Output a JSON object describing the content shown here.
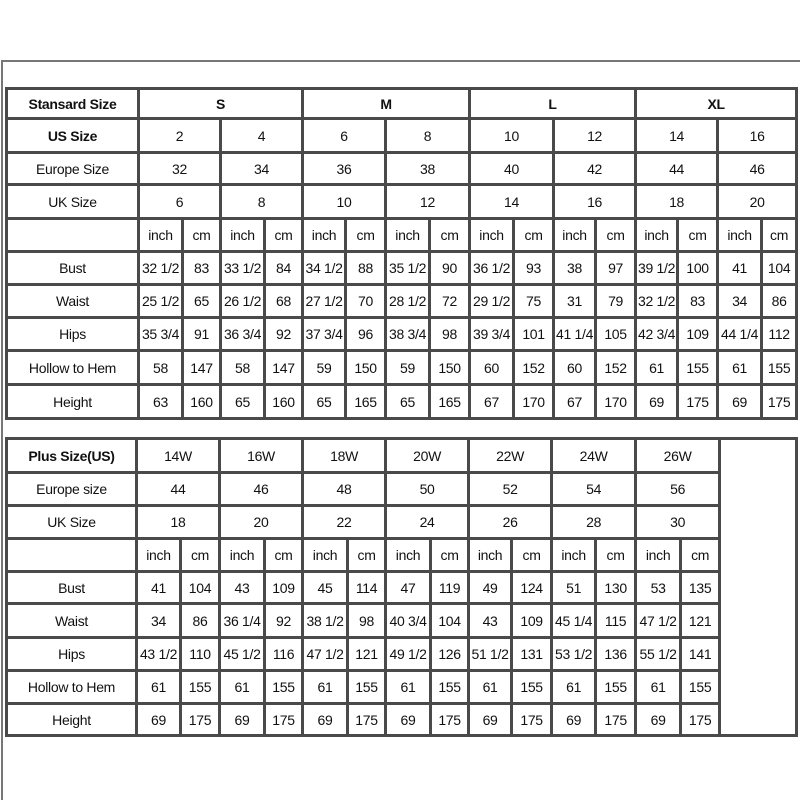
{
  "standard": {
    "header_label": "Stansard Size",
    "groups": [
      "S",
      "M",
      "L",
      "XL"
    ],
    "us_size": {
      "label": "US Size",
      "values": [
        "2",
        "4",
        "6",
        "8",
        "10",
        "12",
        "14",
        "16"
      ]
    },
    "europe_size": {
      "label": "Europe Size",
      "values": [
        "32",
        "34",
        "36",
        "38",
        "40",
        "42",
        "44",
        "46"
      ]
    },
    "uk_size": {
      "label": "UK Size",
      "values": [
        "6",
        "8",
        "10",
        "12",
        "14",
        "16",
        "18",
        "20"
      ]
    },
    "units": [
      "inch",
      "cm"
    ],
    "measurements": [
      {
        "label": "Bust",
        "values": [
          "32 1/2",
          "83",
          "33 1/2",
          "84",
          "34 1/2",
          "88",
          "35 1/2",
          "90",
          "36 1/2",
          "93",
          "38",
          "97",
          "39 1/2",
          "100",
          "41",
          "104"
        ]
      },
      {
        "label": "Waist",
        "values": [
          "25 1/2",
          "65",
          "26 1/2",
          "68",
          "27 1/2",
          "70",
          "28 1/2",
          "72",
          "29 1/2",
          "75",
          "31",
          "79",
          "32 1/2",
          "83",
          "34",
          "86"
        ]
      },
      {
        "label": "Hips",
        "values": [
          "35 3/4",
          "91",
          "36 3/4",
          "92",
          "37 3/4",
          "96",
          "38 3/4",
          "98",
          "39 3/4",
          "101",
          "41 1/4",
          "105",
          "42 3/4",
          "109",
          "44 1/4",
          "112"
        ]
      },
      {
        "label": "Hollow to Hem",
        "values": [
          "58",
          "147",
          "58",
          "147",
          "59",
          "150",
          "59",
          "150",
          "60",
          "152",
          "60",
          "152",
          "61",
          "155",
          "61",
          "155"
        ]
      },
      {
        "label": "Height",
        "values": [
          "63",
          "160",
          "65",
          "160",
          "65",
          "165",
          "65",
          "165",
          "67",
          "170",
          "67",
          "170",
          "69",
          "175",
          "69",
          "175"
        ]
      }
    ]
  },
  "plus": {
    "header_label": "Plus Size(US)",
    "sizes": [
      "14W",
      "16W",
      "18W",
      "20W",
      "22W",
      "24W",
      "26W"
    ],
    "europe_size": {
      "label": "Europe size",
      "values": [
        "44",
        "46",
        "48",
        "50",
        "52",
        "54",
        "56"
      ]
    },
    "uk_size": {
      "label": "UK Size",
      "values": [
        "18",
        "20",
        "22",
        "24",
        "26",
        "28",
        "30"
      ]
    },
    "units": [
      "inch",
      "cm"
    ],
    "measurements": [
      {
        "label": "Bust",
        "values": [
          "41",
          "104",
          "43",
          "109",
          "45",
          "114",
          "47",
          "119",
          "49",
          "124",
          "51",
          "130",
          "53",
          "135"
        ]
      },
      {
        "label": "Waist",
        "values": [
          "34",
          "86",
          "36 1/4",
          "92",
          "38 1/2",
          "98",
          "40 3/4",
          "104",
          "43",
          "109",
          "45 1/4",
          "115",
          "47 1/2",
          "121"
        ]
      },
      {
        "label": "Hips",
        "values": [
          "43 1/2",
          "110",
          "45 1/2",
          "116",
          "47 1/2",
          "121",
          "49 1/2",
          "126",
          "51 1/2",
          "131",
          "53 1/2",
          "136",
          "55 1/2",
          "141"
        ]
      },
      {
        "label": "Hollow to Hem",
        "values": [
          "61",
          "155",
          "61",
          "155",
          "61",
          "155",
          "61",
          "155",
          "61",
          "155",
          "61",
          "155",
          "61",
          "155"
        ]
      },
      {
        "label": "Height",
        "values": [
          "69",
          "175",
          "69",
          "175",
          "69",
          "175",
          "69",
          "175",
          "69",
          "175",
          "69",
          "175",
          "69",
          "175"
        ]
      }
    ]
  }
}
